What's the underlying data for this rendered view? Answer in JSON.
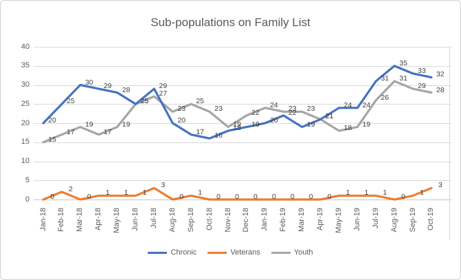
{
  "chart_data": {
    "type": "line",
    "title": "Sub-populations on Family List",
    "categories": [
      "Jan-18",
      "Feb-18",
      "Mar-18",
      "Apr-18",
      "May-18",
      "Jun-18",
      "Jul-18",
      "Aug-18",
      "Sep-18",
      "Oct-18",
      "Nov-18",
      "Dec-18",
      "Jan-19",
      "Feb-19",
      "Mar-19",
      "Apr-19",
      "May-19",
      "Jun-19",
      "Jul-19",
      "Aug-19",
      "Sep-19",
      "Oct-19"
    ],
    "series": [
      {
        "name": "Chronic",
        "color": "#4472c4",
        "values": [
          20,
          25,
          30,
          29,
          28,
          25,
          29,
          20,
          17,
          16,
          18,
          19,
          20,
          22,
          19,
          21,
          24,
          24,
          31,
          35,
          33,
          32
        ]
      },
      {
        "name": "Veterans",
        "color": "#ed7d31",
        "values": [
          0,
          2,
          0,
          1,
          1,
          1,
          3,
          0,
          1,
          0,
          0,
          0,
          0,
          0,
          0,
          0,
          1,
          1,
          1,
          0,
          1,
          3
        ]
      },
      {
        "name": "Youth",
        "color": "#a5a5a5",
        "values": [
          15,
          17,
          19,
          17,
          19,
          25,
          27,
          23,
          25,
          23,
          19,
          22,
          24,
          23,
          23,
          21,
          18,
          19,
          26,
          31,
          29,
          28
        ]
      }
    ],
    "yticks": [
      0,
      5,
      10,
      15,
      20,
      25,
      30,
      35,
      40
    ],
    "ylim": [
      0,
      40
    ],
    "grid": true,
    "data_labels": true,
    "legend_position": "bottom",
    "text_color": "#595959",
    "label_color": "#404040",
    "gridline_color": "#d9d9d9"
  }
}
